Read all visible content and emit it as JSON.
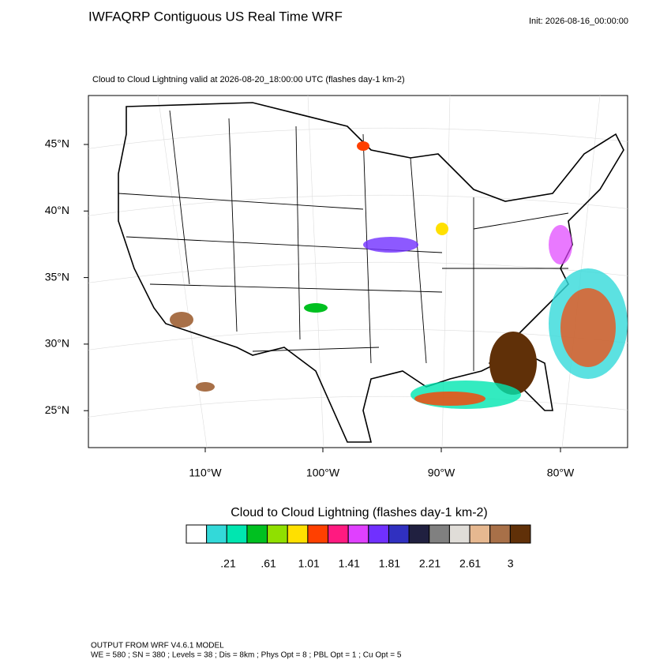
{
  "header": {
    "title": "IWFAQRP Contiguous US Real Time WRF",
    "init": "Init: 2026-08-16_00:00:00"
  },
  "map": {
    "subtitle": "Cloud to Cloud Lightning valid at 2026-08-20_18:00:00 UTC   (flashes day-1 km-2)",
    "lat_labels": [
      "45°N",
      "40°N",
      "35°N",
      "30°N",
      "25°N"
    ],
    "lon_labels": [
      "110°W",
      "100°W",
      "90°W",
      "80°W"
    ]
  },
  "colorbar": {
    "title": "Cloud to Cloud Lightning  (flashes day-1 km-2)",
    "colors": [
      "#ffffff",
      "#33d9d9",
      "#00e6b0",
      "#00c020",
      "#90e000",
      "#ffe000",
      "#ff4000",
      "#ff1a80",
      "#e040ff",
      "#7030ff",
      "#3030c0",
      "#202040",
      "#808080",
      "#e0ddd8",
      "#e6b890",
      "#a87048",
      "#603008"
    ],
    "labels": [
      ".21",
      ".61",
      "1.01",
      "1.41",
      "1.81",
      "2.21",
      "2.61",
      "3"
    ]
  },
  "footer": {
    "lines": [
      "OUTPUT FROM WRF V4.6.1 MODEL",
      "WE = 580 ; SN = 380 ; Levels = 38 ; Dis = 8km ; Phys Opt = 8 ; PBL Opt = 1 ; Cu Opt = 5"
    ]
  }
}
